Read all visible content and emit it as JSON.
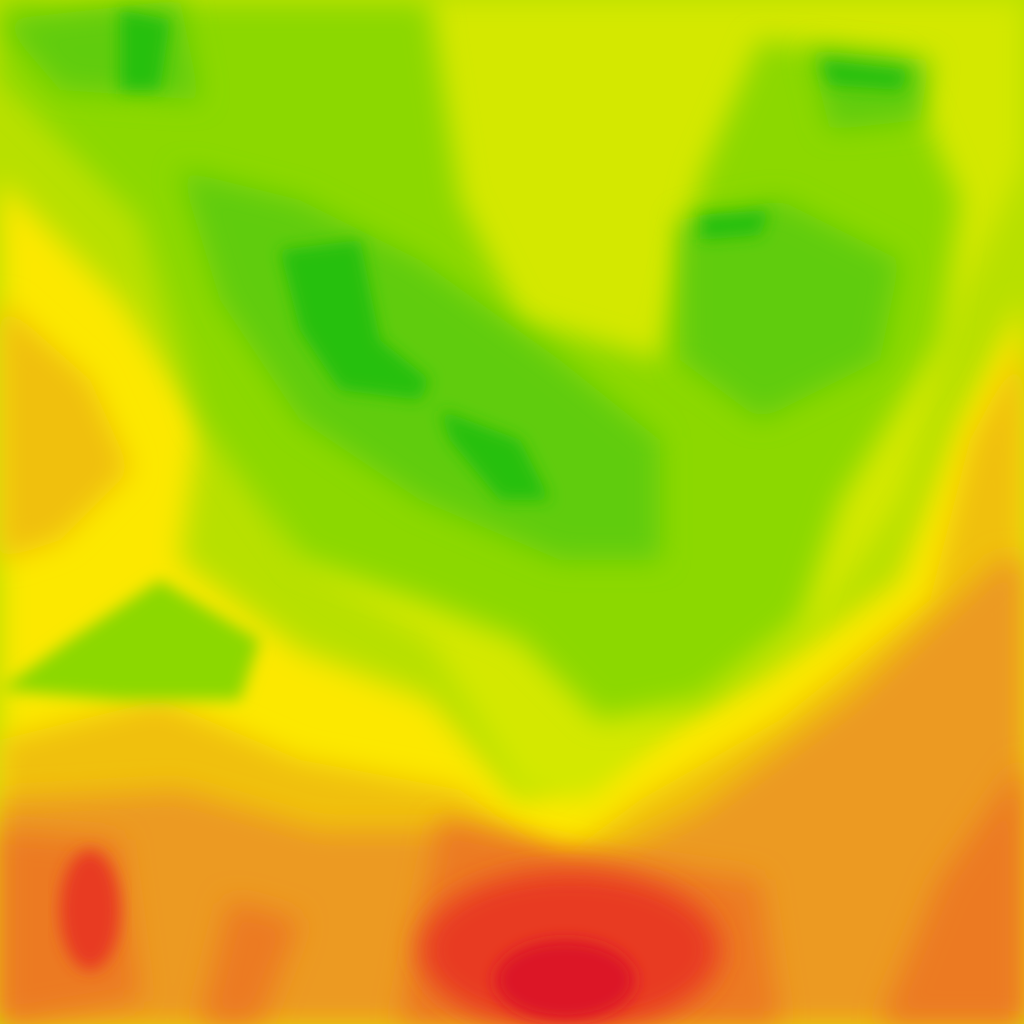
{
  "map": {
    "type": "heatmap-tile",
    "palette": {
      "dark_green": "#28c010",
      "green": "#60cc08",
      "light_green": "#8cd800",
      "yellow_green": "#b8e000",
      "lime": "#d4e800",
      "yellow": "#fce800",
      "amber": "#f0c010",
      "orange": "#ec9a20",
      "dark_orange": "#ec7a24",
      "red": "#e83a24",
      "crimson": "#dc1428"
    }
  }
}
